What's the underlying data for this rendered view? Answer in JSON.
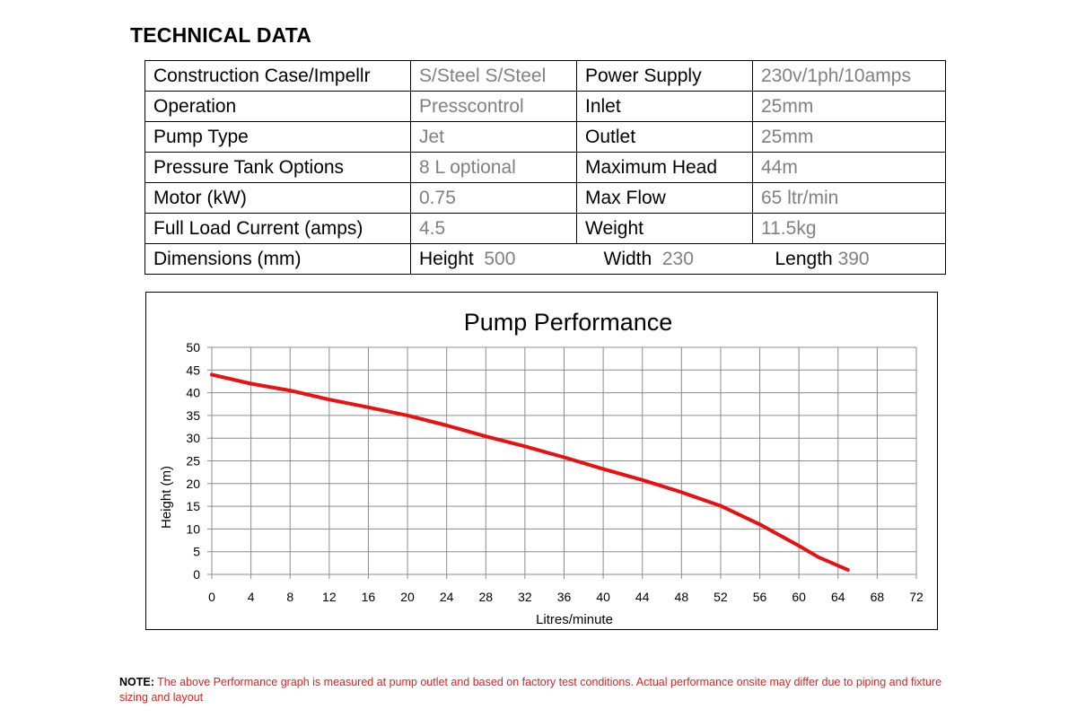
{
  "page_title": "TECHNICAL DATA",
  "table": {
    "rows": [
      {
        "label1": "Construction Case/Impellr",
        "value1": "S/Steel S/Steel",
        "label2": "Power Supply",
        "value2": "230v/1ph/10amps"
      },
      {
        "label1": "Operation",
        "value1": "Presscontrol",
        "label2": "Inlet",
        "value2": "25mm"
      },
      {
        "label1": "Pump Type",
        "value1": "Jet",
        "label2": "Outlet",
        "value2": "25mm"
      },
      {
        "label1": "Pressure Tank Options",
        "value1": "8 L optional",
        "label2": "Maximum Head",
        "value2": "44m"
      },
      {
        "label1": "Motor  (kW)",
        "value1": "0.75",
        "label2": "Max Flow",
        "value2": "65 ltr/min"
      },
      {
        "label1": "Full Load Current (amps)",
        "value1": "4.5",
        "label2": "Weight",
        "value2": "11.5kg"
      }
    ],
    "dimensions": {
      "label": "Dimensions (mm)",
      "height_label": "Height",
      "height_value": "500",
      "width_label": "Width",
      "width_value": "230",
      "length_label": "Length",
      "length_value": "390"
    }
  },
  "chart_data": {
    "type": "line",
    "title": "Pump Performance",
    "xlabel": "Litres/minute",
    "ylabel": "Height (m)",
    "xlim": [
      0,
      72
    ],
    "ylim": [
      0,
      50
    ],
    "x_ticks": [
      0,
      4,
      8,
      12,
      16,
      20,
      24,
      28,
      32,
      36,
      40,
      44,
      48,
      52,
      56,
      60,
      64,
      68,
      72
    ],
    "y_ticks": [
      0,
      5,
      10,
      15,
      20,
      25,
      30,
      35,
      40,
      45,
      50
    ],
    "grid": true,
    "series": [
      {
        "color": "#e81010",
        "x": [
          0,
          4,
          8,
          12,
          16,
          20,
          24,
          28,
          32,
          36,
          40,
          44,
          48,
          52,
          56,
          60,
          62,
          65
        ],
        "y": [
          44,
          42,
          40.5,
          38.5,
          36.8,
          35,
          32.8,
          30.4,
          28.2,
          25.8,
          23.2,
          20.8,
          18.1,
          15.1,
          11,
          6.3,
          3.8,
          1
        ]
      }
    ]
  },
  "note": {
    "label": "NOTE:",
    "text": " The above Performance graph is measured at pump outlet and based on factory test conditions. Actual performance onsite may differ due to piping and fixture sizing and layout"
  }
}
